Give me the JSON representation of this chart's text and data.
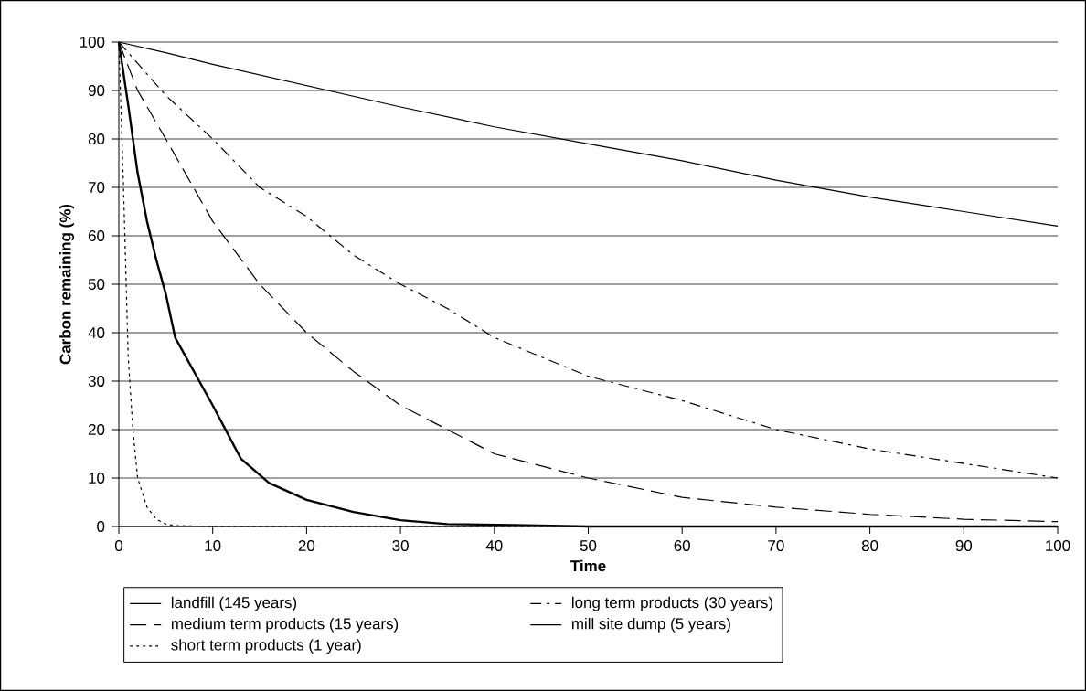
{
  "chart_data": {
    "type": "line",
    "xlabel": "Time",
    "ylabel": "Carbon remaining (%)",
    "xlim": [
      0,
      100
    ],
    "xticks": [
      0,
      10,
      20,
      30,
      40,
      50,
      60,
      70,
      80,
      90,
      100
    ],
    "ylim": [
      0,
      100
    ],
    "yticks": [
      0,
      10,
      20,
      30,
      40,
      50,
      60,
      70,
      80,
      90,
      100
    ],
    "grid": "y",
    "legend": "bottom",
    "marker": "none",
    "series": [
      {
        "name": "landfill (145 years)",
        "color": "#000000",
        "line_style": "solid",
        "x": [
          0,
          5,
          10,
          20,
          30,
          40,
          50,
          60,
          70,
          80,
          90,
          100
        ],
        "values": [
          100,
          97.8,
          95.4,
          91,
          86.6,
          82.5,
          79,
          75.5,
          71.5,
          68,
          65,
          62
        ]
      },
      {
        "name": "long term products (30 years)",
        "color": "#000000",
        "line_style": "dashdotted",
        "x": [
          0,
          5,
          10,
          15,
          20,
          25,
          30,
          35,
          40,
          50,
          60,
          70,
          80,
          90,
          100
        ],
        "values": [
          100,
          89,
          80,
          70,
          64,
          56,
          50,
          45,
          39,
          31,
          26,
          20,
          16,
          13,
          10
        ]
      },
      {
        "name": "medium term products (15 years)",
        "color": "#000000",
        "line_style": "dashed",
        "x": [
          0,
          2,
          5,
          10,
          15,
          20,
          25,
          30,
          35,
          40,
          50,
          60,
          70,
          80,
          90,
          100
        ],
        "values": [
          100,
          90,
          80,
          63,
          50,
          40,
          32,
          25,
          20,
          15,
          10,
          6,
          4,
          2.5,
          1.5,
          1
        ]
      },
      {
        "name": "mill site dump (5 years)",
        "color": "#000000",
        "line_style": "solid",
        "x": [
          0,
          1,
          2,
          3,
          4,
          5,
          6,
          8,
          10,
          13,
          16,
          20,
          25,
          30,
          35,
          42,
          50,
          100
        ],
        "values": [
          100,
          87,
          73,
          63,
          55,
          48,
          39,
          32,
          25,
          14,
          9,
          5.5,
          3,
          1.3,
          0.5,
          0.3,
          0,
          0
        ]
      },
      {
        "name": "short term products (1 year)",
        "color": "#000000",
        "line_style": "dotted",
        "x": [
          0,
          0.5,
          1,
          1.5,
          2,
          3,
          4,
          5,
          6,
          10,
          100
        ],
        "values": [
          100,
          70,
          35,
          20,
          10,
          4,
          1.5,
          0.5,
          0.2,
          0,
          0
        ]
      }
    ]
  }
}
